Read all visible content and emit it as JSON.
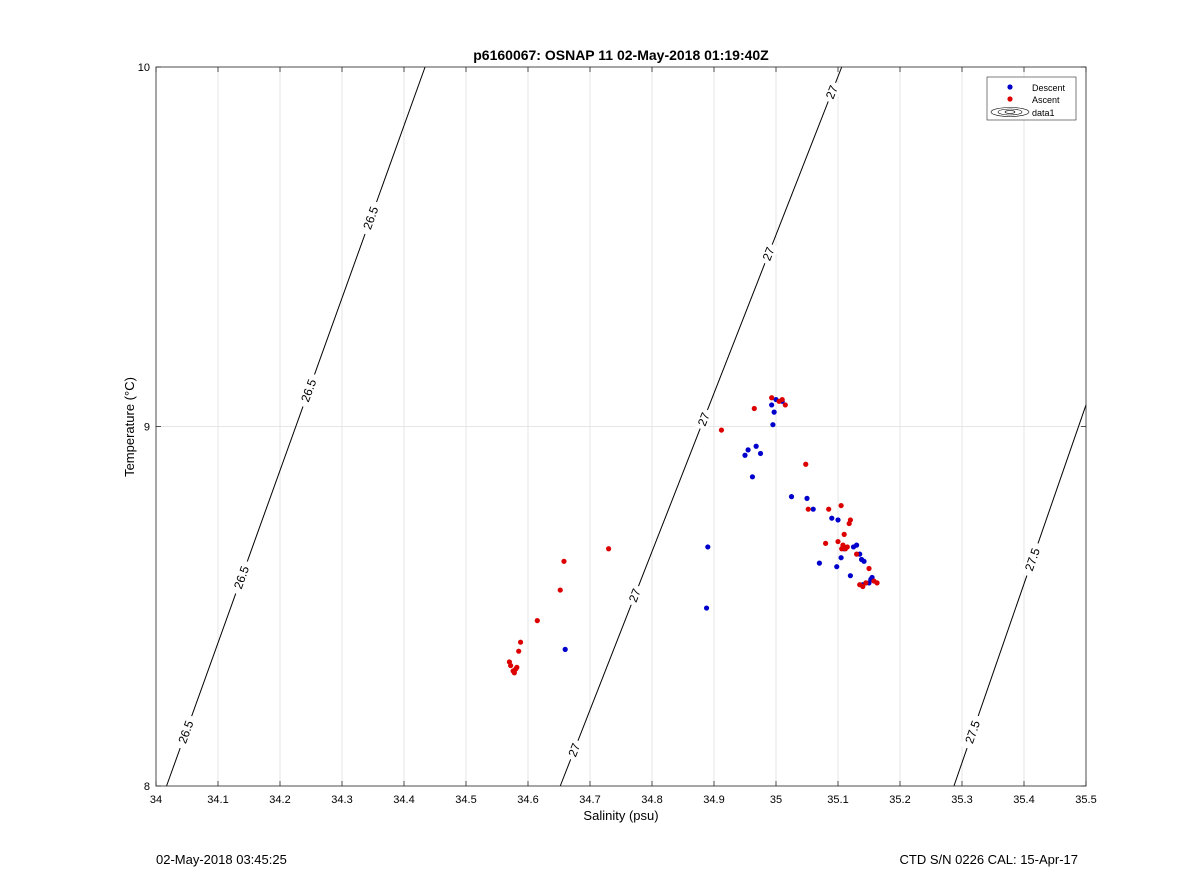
{
  "footer": {
    "timestamp": "02-May-2018 03:45:25",
    "ctd_info": "CTD S/N 0226  CAL: 15-Apr-17"
  },
  "chart_data": {
    "type": "scatter",
    "title": "p6160067: OSNAP 11 02-May-2018 01:19:40Z",
    "xlabel": "Salinity (psu)",
    "ylabel": "Temperature (°C)",
    "xlim": [
      34,
      35.5
    ],
    "ylim": [
      8,
      10
    ],
    "xticks": [
      34,
      34.1,
      34.2,
      34.3,
      34.4,
      34.5,
      34.6,
      34.7,
      34.8,
      34.9,
      35,
      35.1,
      35.2,
      35.3,
      35.4,
      35.5
    ],
    "xtick_labels": [
      "34",
      "34.1",
      "34.2",
      "34.3",
      "34.4",
      "34.5",
      "34.6",
      "34.7",
      "34.8",
      "34.9",
      "35",
      "35.1",
      "35.2",
      "35.3",
      "35.4",
      "35.5"
    ],
    "yticks": [
      8,
      9,
      10
    ],
    "ytick_labels": [
      "8",
      "9",
      "10"
    ],
    "grid": true,
    "legend_position": "top-right",
    "colors": {
      "descent": "#0000cc",
      "ascent": "#dd0000",
      "contour": "#000000",
      "grid": "#e6e6e6"
    },
    "legend": [
      "Descent",
      "Ascent",
      "data1"
    ],
    "series": [
      {
        "name": "Descent",
        "x": [
          34.66,
          34.89,
          34.888,
          34.95,
          34.955,
          34.962,
          34.968,
          34.975,
          34.993,
          34.995,
          34.997,
          35.0,
          35.01,
          35.025,
          35.05,
          35.06,
          35.07,
          35.09,
          35.1,
          35.098,
          35.105,
          35.11,
          35.12,
          35.125,
          35.13,
          35.135,
          35.138,
          35.14,
          35.142,
          35.15,
          35.153,
          35.155
        ],
        "y": [
          8.38,
          8.665,
          8.495,
          8.92,
          8.935,
          8.86,
          8.945,
          8.925,
          9.06,
          9.005,
          9.04,
          9.075,
          9.07,
          8.805,
          8.8,
          8.77,
          8.62,
          8.745,
          8.74,
          8.61,
          8.635,
          8.66,
          8.585,
          8.665,
          8.67,
          8.645,
          8.63,
          8.56,
          8.625,
          8.565,
          8.575,
          8.58
        ]
      },
      {
        "name": "Ascent",
        "x": [
          34.57,
          34.572,
          34.576,
          34.578,
          34.58,
          34.582,
          34.585,
          34.588,
          34.615,
          34.652,
          34.658,
          34.73,
          34.912,
          34.965,
          34.993,
          35.005,
          35.01,
          35.015,
          35.048,
          35.052,
          35.08,
          35.085,
          35.1,
          35.105,
          35.106,
          35.108,
          35.11,
          35.112,
          35.115,
          35.118,
          35.12,
          35.13,
          35.135,
          35.14,
          35.145,
          35.15,
          35.158,
          35.163
        ],
        "y": [
          8.345,
          8.335,
          8.32,
          8.315,
          8.325,
          8.33,
          8.375,
          8.4,
          8.46,
          8.545,
          8.625,
          8.66,
          8.99,
          9.05,
          9.08,
          9.07,
          9.075,
          9.06,
          8.895,
          8.77,
          8.675,
          8.77,
          8.68,
          8.78,
          8.66,
          8.67,
          8.7,
          8.66,
          8.665,
          8.73,
          8.74,
          8.645,
          8.56,
          8.555,
          8.565,
          8.605,
          8.57,
          8.565
        ]
      }
    ],
    "isopycnals": [
      {
        "label": "26.5",
        "line": [
          [
            34.017,
            8.0
          ],
          [
            34.434,
            10.0
          ]
        ],
        "label_positions": [
          [
            34.05,
            8.15
          ],
          [
            34.14,
            8.58
          ],
          [
            34.24,
            9.1
          ],
          [
            34.34,
            9.58
          ]
        ]
      },
      {
        "label": "27",
        "line": [
          [
            34.652,
            8.0
          ],
          [
            35.106,
            10.0
          ]
        ],
        "label_positions": [
          [
            34.68,
            8.1
          ],
          [
            34.78,
            8.53
          ],
          [
            34.89,
            9.02
          ],
          [
            35.0,
            9.48
          ],
          [
            35.12,
            9.93
          ]
        ]
      },
      {
        "label": "27.5",
        "line": [
          [
            35.287,
            8.0
          ],
          [
            35.5,
            9.06
          ]
        ],
        "label_positions": [
          [
            35.32,
            8.15
          ],
          [
            35.43,
            8.63
          ]
        ]
      }
    ]
  }
}
